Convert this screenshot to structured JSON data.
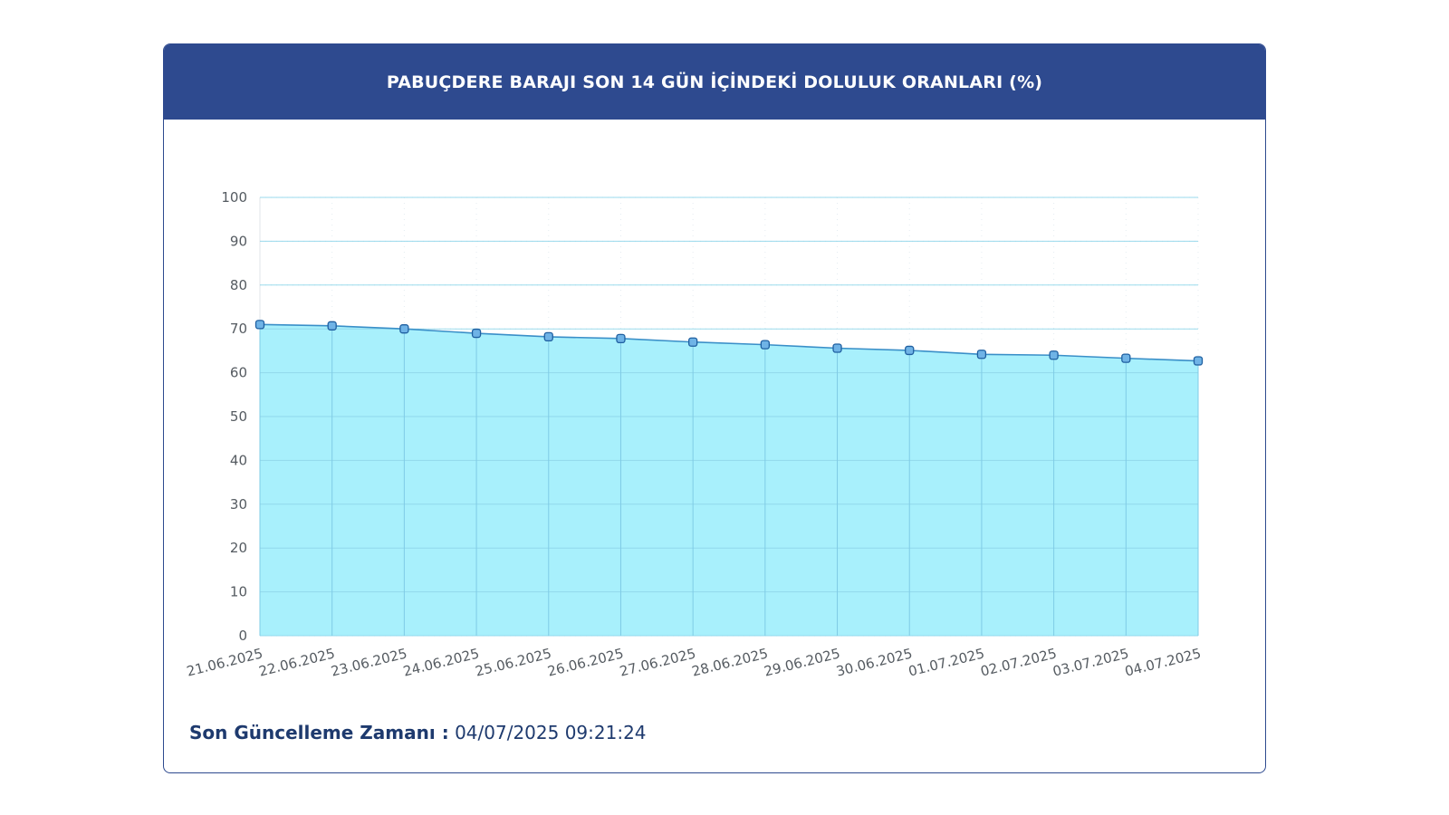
{
  "header": {
    "title": "PABUÇDERE BARAJI SON 14 GÜN İÇİNDEKİ DOLULUK ORANLARI (%)"
  },
  "footer": {
    "label": "Son Güncelleme Zamanı :",
    "value": "04/07/2025 09:21:24"
  },
  "colors": {
    "header_bg": "#2e4a8f",
    "area_fill": "#a8f0fc",
    "line": "#3a8fc8",
    "marker_fill": "#6fb3e6",
    "marker_stroke": "#1f5fa0",
    "footer_text": "#1e3a6e"
  },
  "chart_data": {
    "type": "area",
    "title": "PABUÇDERE BARAJI SON 14 GÜN İÇİNDEKİ DOLULUK ORANLARI (%)",
    "xlabel": "",
    "ylabel": "",
    "ylim": [
      0,
      100
    ],
    "yticks": [
      0,
      10,
      20,
      30,
      40,
      50,
      60,
      70,
      80,
      90,
      100
    ],
    "grid": true,
    "legend": "none",
    "categories": [
      "21.06.2025",
      "22.06.2025",
      "23.06.2025",
      "24.06.2025",
      "25.06.2025",
      "26.06.2025",
      "27.06.2025",
      "28.06.2025",
      "29.06.2025",
      "30.06.2025",
      "01.07.2025",
      "02.07.2025",
      "03.07.2025",
      "04.07.2025"
    ],
    "series": [
      {
        "values": [
          71.0,
          70.7,
          70.0,
          69.0,
          68.2,
          67.8,
          67.0,
          66.4,
          65.6,
          65.1,
          64.2,
          64.0,
          63.3,
          62.7
        ]
      }
    ]
  }
}
